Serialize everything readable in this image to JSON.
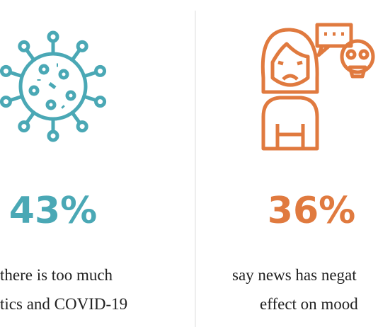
{
  "panels": [
    {
      "stat": "43%",
      "caption": [
        "there is too much",
        "tics and COVID-19"
      ]
    },
    {
      "stat": "36%",
      "caption": [
        "say news has negat",
        "effect on mood"
      ]
    }
  ]
}
